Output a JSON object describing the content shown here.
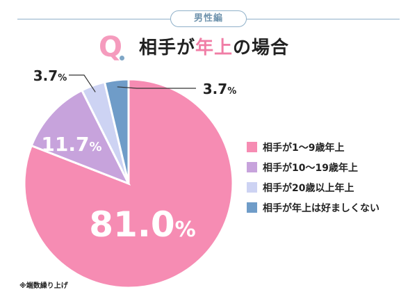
{
  "header": {
    "tag": "男性編",
    "q_letter": "Q",
    "title_pre": "相手が",
    "title_accent": "年上",
    "title_post": "の場合"
  },
  "chart_data": {
    "type": "pie",
    "slices": [
      {
        "label": "相手が1～9歳年上",
        "value": 81.0,
        "display": "81.0",
        "color": "#f68cb3"
      },
      {
        "label": "相手が10～19歳年上",
        "value": 11.7,
        "display": "11.7",
        "color": "#c7a3dc"
      },
      {
        "label": "相手が20歳以上年上",
        "value": 3.7,
        "display": "3.7",
        "color": "#cdd3f3"
      },
      {
        "label": "相手が年上は好ましくない",
        "value": 3.7,
        "display": "3.7",
        "color": "#6f9cc8"
      }
    ],
    "unit": "%",
    "legend": "right"
  },
  "note": "※端数繰り上げ"
}
